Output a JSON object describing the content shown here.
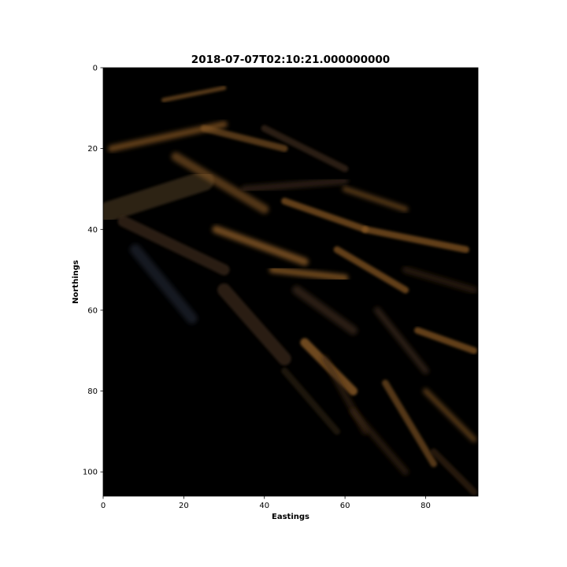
{
  "chart_data": {
    "type": "heatmap",
    "title": "2018-07-07T02:10:21.000000000",
    "xlabel": "Eastings",
    "ylabel": "Northings",
    "xlim": [
      0,
      93
    ],
    "ylim": [
      106,
      0
    ],
    "y_inverted": true,
    "x_ticks": [
      0,
      20,
      40,
      60,
      80
    ],
    "y_ticks": [
      0,
      20,
      40,
      60,
      80,
      100
    ],
    "image": "RGB satellite image, mostly black background with diagonal brownish-orange ridge/streak features running from upper-left to lower-right",
    "colors": {
      "background": "#000000",
      "ridge_bright": "#8a5a25",
      "ridge_dim": "#3a2a18",
      "bluish_patch": "#2a3040"
    },
    "grid": false,
    "legend": "none"
  }
}
